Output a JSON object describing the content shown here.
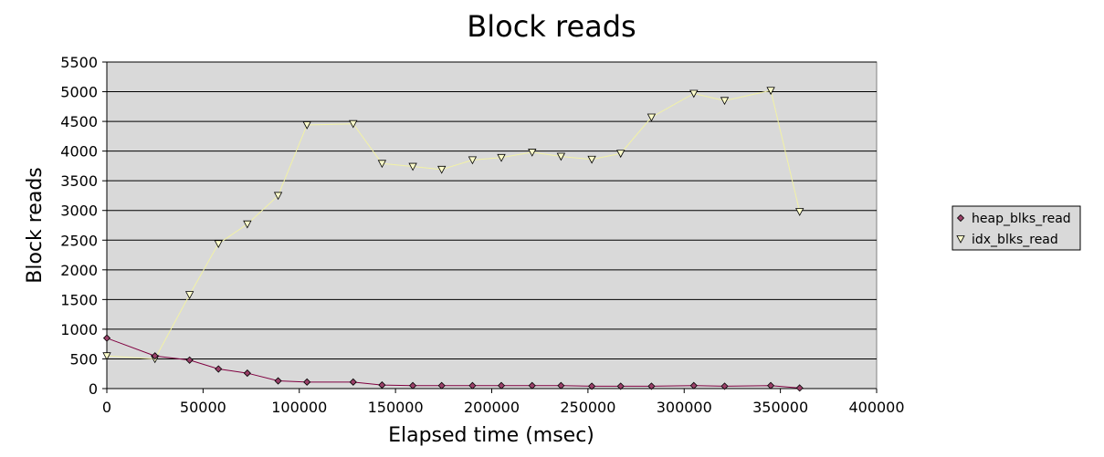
{
  "chart_data": {
    "type": "line",
    "title": "Block reads",
    "xlabel": "Elapsed time (msec)",
    "ylabel": "Block reads",
    "xlim": [
      0,
      400000
    ],
    "ylim": [
      0,
      5500
    ],
    "xticks": [
      0,
      50000,
      100000,
      150000,
      200000,
      250000,
      300000,
      350000,
      400000
    ],
    "yticks": [
      0,
      500,
      1000,
      1500,
      2000,
      2500,
      3000,
      3500,
      4000,
      4500,
      5000,
      5500
    ],
    "grid": "horizontal",
    "legend_position": "right",
    "plot_background": "#d9d9d9",
    "series": [
      {
        "name": "heap_blks_read",
        "marker": "diamond",
        "color": "#800040",
        "fill": "#9a4068",
        "x": [
          0,
          25000,
          43000,
          58000,
          73000,
          89000,
          104000,
          128000,
          143000,
          159000,
          174000,
          190000,
          205000,
          221000,
          236000,
          252000,
          267000,
          283000,
          305000,
          321000,
          345000,
          360000
        ],
        "y": [
          850,
          550,
          480,
          330,
          260,
          130,
          110,
          110,
          60,
          50,
          50,
          50,
          50,
          50,
          50,
          40,
          40,
          40,
          50,
          40,
          50,
          10
        ]
      },
      {
        "name": "idx_blks_read",
        "marker": "triangle-down",
        "color": "#f2f2a6",
        "fill": "#ffffcc",
        "x": [
          0,
          25000,
          43000,
          58000,
          73000,
          89000,
          104000,
          128000,
          143000,
          159000,
          174000,
          190000,
          205000,
          221000,
          236000,
          252000,
          267000,
          283000,
          305000,
          321000,
          345000,
          360000
        ],
        "y": [
          550,
          500,
          1580,
          2440,
          2770,
          3250,
          4440,
          4460,
          3790,
          3740,
          3690,
          3850,
          3890,
          3980,
          3910,
          3860,
          3960,
          4570,
          4970,
          4850,
          5020,
          2980
        ]
      }
    ]
  }
}
